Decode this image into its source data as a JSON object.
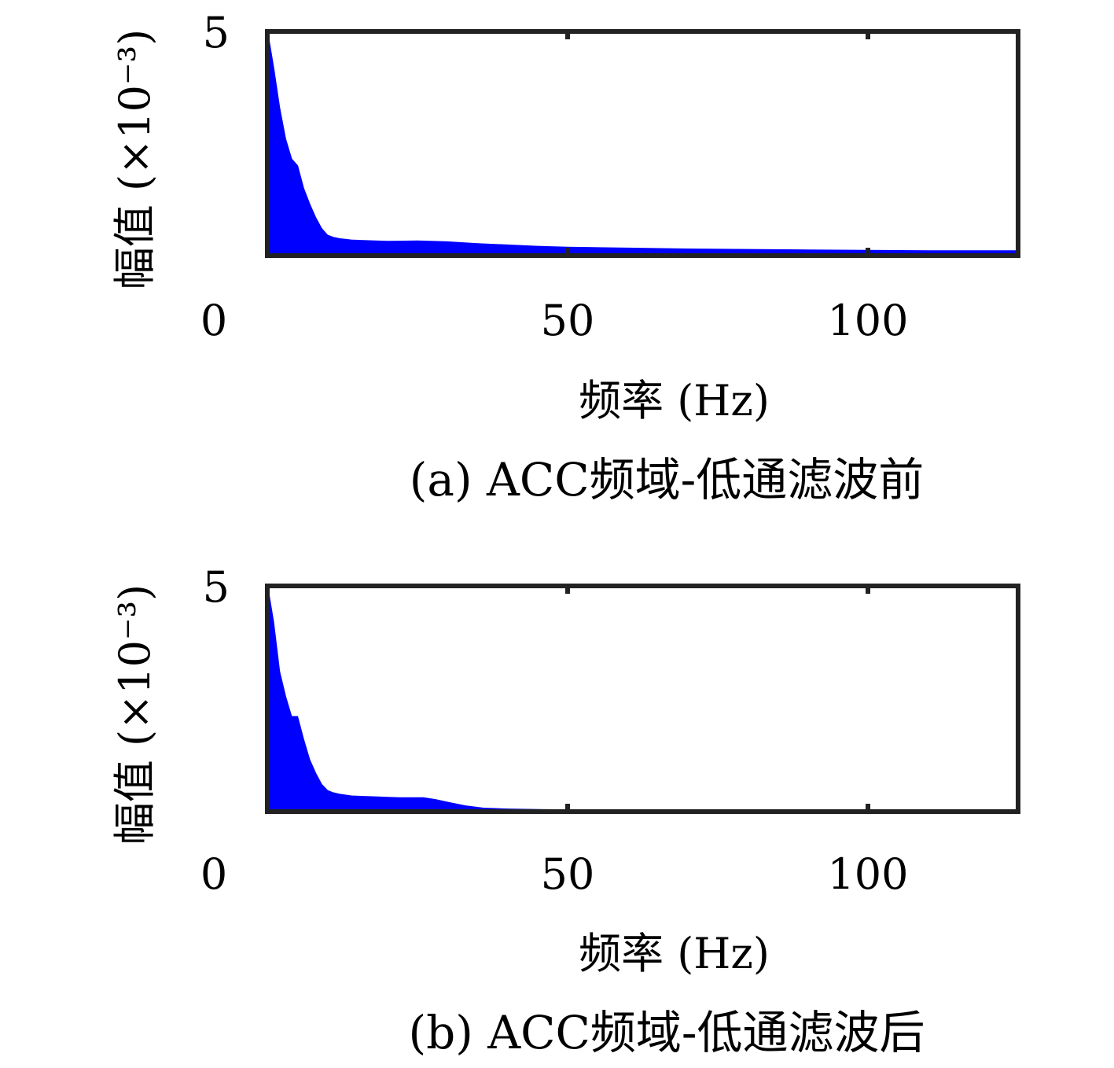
{
  "chart_data": [
    {
      "type": "area",
      "caption": "(a) ACC频域-低通滤波前",
      "xlabel": "频率 (Hz)",
      "ylabel": "幅值 (×10⁻³)",
      "xlim": [
        0,
        125
      ],
      "ylim": [
        0,
        5
      ],
      "xticks": [
        "0",
        "50",
        "100"
      ],
      "xtick_values": [
        0,
        50,
        100
      ],
      "yticks": [
        "5"
      ],
      "ytick_values": [
        5
      ],
      "grid": false,
      "color": "#0000ff",
      "series": [
        {
          "x": [
            0,
            1,
            2,
            3,
            4,
            5,
            6,
            7,
            8,
            9,
            10,
            11,
            12,
            14,
            16,
            18,
            20,
            25,
            30,
            35,
            40,
            45,
            50,
            60,
            70,
            80,
            90,
            100,
            110,
            120,
            125
          ],
          "y": [
            5.0,
            4.2,
            3.3,
            2.6,
            2.15,
            2.0,
            1.5,
            1.15,
            0.85,
            0.6,
            0.45,
            0.4,
            0.37,
            0.34,
            0.33,
            0.32,
            0.31,
            0.32,
            0.3,
            0.26,
            0.23,
            0.2,
            0.18,
            0.16,
            0.14,
            0.13,
            0.12,
            0.11,
            0.1,
            0.1,
            0.1
          ]
        }
      ]
    },
    {
      "type": "area",
      "caption": "(b) ACC频域-低通滤波后",
      "xlabel": "频率 (Hz)",
      "ylabel": "幅值 (×10⁻³)",
      "xlim": [
        0,
        125
      ],
      "ylim": [
        0,
        5
      ],
      "xticks": [
        "0",
        "50",
        "100"
      ],
      "xtick_values": [
        0,
        50,
        100
      ],
      "yticks": [
        "5"
      ],
      "ytick_values": [
        5
      ],
      "grid": false,
      "color": "#0000ff",
      "series": [
        {
          "x": [
            0,
            1,
            2,
            3,
            4,
            5,
            6,
            7,
            8,
            9,
            10,
            11,
            12,
            14,
            16,
            18,
            20,
            22,
            24,
            26,
            28,
            30,
            33,
            36,
            40,
            45,
            50,
            60,
            80,
            100,
            125
          ],
          "y": [
            5.0,
            4.2,
            3.1,
            2.55,
            2.1,
            2.1,
            1.6,
            1.15,
            0.85,
            0.6,
            0.46,
            0.41,
            0.38,
            0.34,
            0.33,
            0.32,
            0.31,
            0.3,
            0.3,
            0.3,
            0.26,
            0.2,
            0.12,
            0.07,
            0.05,
            0.04,
            0.03,
            0.03,
            0.03,
            0.03,
            0.03
          ]
        }
      ]
    }
  ]
}
